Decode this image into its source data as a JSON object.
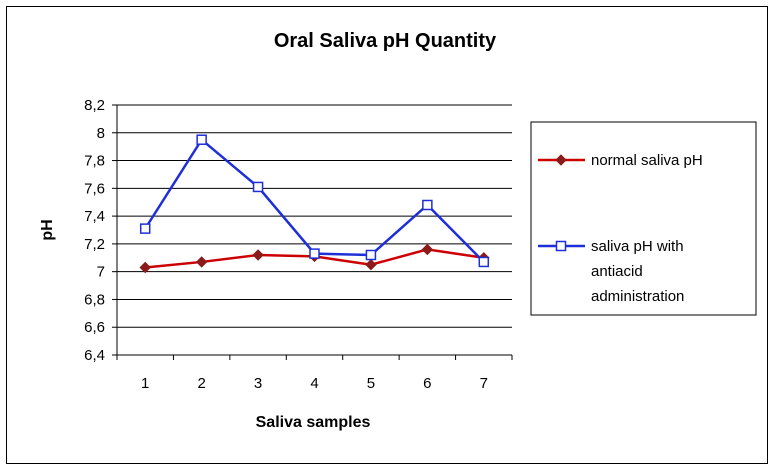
{
  "chart_data": {
    "type": "line",
    "title": "Oral Saliva pH Quantity",
    "xlabel": "Saliva samples",
    "ylabel": "pH",
    "categories": [
      "1",
      "2",
      "3",
      "4",
      "5",
      "6",
      "7"
    ],
    "ylim": [
      6.4,
      8.2
    ],
    "ytick_step": 0.2,
    "ytick_labels": [
      "6,4",
      "6,6",
      "6,8",
      "7",
      "7,2",
      "7,4",
      "7,6",
      "7,8",
      "8",
      "8,2"
    ],
    "grid": "horizontal",
    "legend_position": "right",
    "series": [
      {
        "name": "normal saliva pH",
        "color": "#cc0000",
        "marker": "diamond",
        "values": [
          7.03,
          7.07,
          7.12,
          7.11,
          7.05,
          7.16,
          7.1
        ],
        "legend_lines": [
          "normal saliva pH"
        ]
      },
      {
        "name": "saliva pH with antiacid administration",
        "color": "#1f2fd8",
        "marker": "square",
        "values": [
          7.31,
          7.95,
          7.61,
          7.13,
          7.12,
          7.48,
          7.07
        ],
        "legend_lines": [
          "saliva pH with",
          "antiacid",
          "administration"
        ]
      }
    ]
  }
}
